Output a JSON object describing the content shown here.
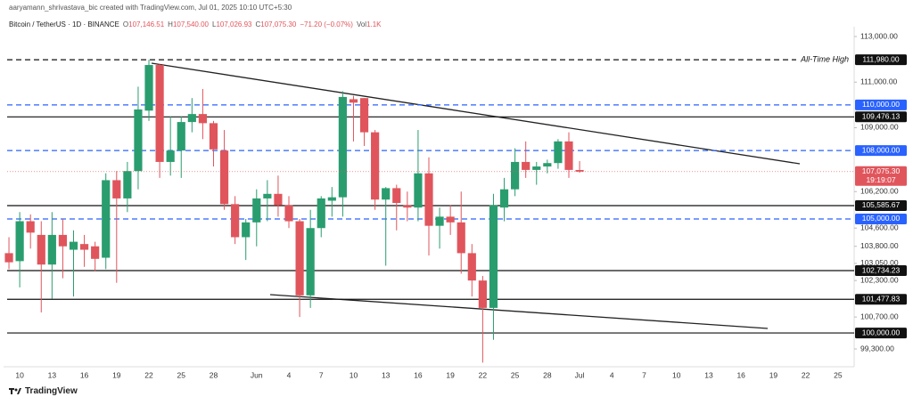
{
  "header": {
    "credit": "aaryamann_shrivastava_bic created with TradingView.com, Jul 01, 2025 10:10 UTC+5:30",
    "symbol": "Bitcoin / TetherUS · 1D · BINANCE",
    "ohlc": [
      {
        "key": "O",
        "value": "107,146.51"
      },
      {
        "key": "H",
        "value": "107,540.00"
      },
      {
        "key": "L",
        "value": "107,026.93"
      },
      {
        "key": "C",
        "value": "107,075.30"
      }
    ],
    "change": "−71.20 (−0.07%)",
    "volume_key": "Vol",
    "volume": "1.1K"
  },
  "footer": {
    "brand": "TradingView"
  },
  "chart_data": {
    "type": "candlestick",
    "up_color": "#2a9d6f",
    "down_color": "#e0555c",
    "categories": [
      null,
      "10",
      null,
      null,
      "13",
      null,
      null,
      "16",
      null,
      null,
      "19",
      null,
      null,
      "22",
      null,
      null,
      "25",
      null,
      null,
      "28",
      null,
      null,
      null,
      "Jun",
      null,
      null,
      "4",
      null,
      null,
      "7",
      null,
      null,
      "10",
      null,
      null,
      "13",
      null,
      null,
      "16",
      null,
      null,
      "19",
      null,
      null,
      "22",
      null,
      null,
      "25",
      null,
      null,
      "28",
      null,
      null,
      "Jul",
      null,
      null,
      "4",
      null,
      null,
      "7",
      null,
      null,
      "10",
      null,
      null,
      "13",
      null,
      null,
      "16",
      null,
      null,
      "19",
      null,
      null,
      "22",
      null,
      null,
      "25",
      null
    ],
    "open": [
      103500,
      103150,
      104900,
      104300,
      103000,
      104300,
      103650,
      103900,
      103800,
      103300,
      106700,
      105900,
      107100,
      109750,
      111750,
      107500,
      108000,
      109250,
      109600,
      109200,
      108000,
      105650,
      104200,
      104850,
      105900,
      106100,
      105600,
      104900,
      101650,
      104600,
      105800,
      105950,
      110250,
      110300,
      108800,
      105850,
      106350,
      105600,
      105500,
      107000,
      104700,
      105100,
      104850,
      103500,
      102300,
      101100,
      105500,
      106300,
      107500,
      107150,
      107300,
      107450,
      108400,
      107146.51,
      null,
      null,
      null,
      null,
      null,
      null,
      null,
      null,
      null,
      null,
      null,
      null,
      null,
      null,
      null,
      null,
      null,
      null,
      null,
      null,
      null,
      null,
      null,
      null,
      null
    ],
    "high": [
      104200,
      105300,
      105200,
      104900,
      105300,
      105000,
      104500,
      104300,
      104000,
      107000,
      107100,
      107500,
      110800,
      111980,
      111800,
      109500,
      109500,
      110300,
      110700,
      109300,
      108900,
      106000,
      105000,
      106300,
      106700,
      106900,
      106000,
      105000,
      105400,
      106000,
      106400,
      110600,
      110400,
      110300,
      108900,
      106400,
      106500,
      106200,
      108900,
      107700,
      105500,
      105600,
      106200,
      103900,
      102500,
      106100,
      106800,
      108100,
      108400,
      107500,
      107600,
      108500,
      108800,
      107540,
      null,
      null,
      null,
      null,
      null,
      null,
      null,
      null,
      null,
      null,
      null,
      null,
      null,
      null,
      null,
      null,
      null,
      null,
      null,
      null,
      null,
      null,
      null,
      null,
      null
    ],
    "low": [
      102800,
      102000,
      103700,
      100900,
      101500,
      102400,
      101600,
      102900,
      102700,
      102800,
      102200,
      105300,
      106300,
      109300,
      106800,
      106900,
      106800,
      108800,
      108500,
      107300,
      105400,
      103900,
      103200,
      103800,
      104900,
      105100,
      104600,
      100700,
      101100,
      104200,
      105100,
      105100,
      108400,
      108200,
      105400,
      102950,
      104500,
      104900,
      104900,
      103400,
      103700,
      104300,
      102600,
      101600,
      98700,
      99700,
      104900,
      106000,
      106800,
      106500,
      107000,
      107200,
      106800,
      107026.93,
      null,
      null,
      null,
      null,
      null,
      null,
      null,
      null,
      null,
      null,
      null,
      null,
      null,
      null,
      null,
      null,
      null,
      null,
      null,
      null,
      null,
      null,
      null,
      null,
      null
    ],
    "close": [
      103100,
      104900,
      104400,
      103000,
      104300,
      103800,
      104000,
      103650,
      103250,
      106700,
      105900,
      107100,
      109800,
      111750,
      107500,
      108000,
      109250,
      109600,
      109200,
      108050,
      105650,
      104200,
      104850,
      105900,
      106100,
      105600,
      104900,
      101650,
      104600,
      105900,
      105950,
      110350,
      110100,
      108800,
      105850,
      106350,
      105700,
      105500,
      107000,
      104700,
      105100,
      104850,
      103500,
      102300,
      101100,
      105600,
      106300,
      107500,
      107150,
      107300,
      107450,
      108400,
      107150,
      107075.3,
      null,
      null,
      null,
      null,
      null,
      null,
      null,
      null,
      null,
      null,
      null,
      null,
      null,
      null,
      null,
      null,
      null,
      null,
      null,
      null,
      null,
      null,
      null,
      null,
      null
    ],
    "ylim": [
      98520,
      113430
    ],
    "yticks": [
      {
        "value": 113000,
        "label": "113,000.00"
      },
      {
        "value": 111000,
        "label": "111,000.00"
      },
      {
        "value": 109000,
        "label": "109,000.00"
      },
      {
        "value": 106200,
        "label": "106,200.00"
      },
      {
        "value": 104600,
        "label": "104,600.00"
      },
      {
        "value": 103800,
        "label": "103,800.00"
      },
      {
        "value": 103050,
        "label": "103,050.00"
      },
      {
        "value": 102300,
        "label": "102,300.00"
      },
      {
        "value": 100700,
        "label": "100,700.00"
      },
      {
        "value": 99300,
        "label": "99,300.00"
      }
    ],
    "price_lines": [
      {
        "value": 111980,
        "label": "111,980.00",
        "color": "#111111",
        "dashed": true,
        "annotation": "All-Time High"
      },
      {
        "value": 110000,
        "label": "110,000.00",
        "color": "#2962ff",
        "dashed": true
      },
      {
        "value": 109476.13,
        "label": "109,476.13",
        "color": "#111111",
        "dashed": false
      },
      {
        "value": 108000,
        "label": "108,000.00",
        "color": "#2962ff",
        "dashed": true
      },
      {
        "value": 105585.67,
        "label": "105,585.67",
        "color": "#111111",
        "dashed": false
      },
      {
        "value": 105000,
        "label": "105,000.00",
        "color": "#2962ff",
        "dashed": true
      },
      {
        "value": 102734.23,
        "label": "102,734.23",
        "color": "#111111",
        "dashed": false
      },
      {
        "value": 101477.83,
        "label": "101,477.83",
        "color": "#111111",
        "dashed": false
      },
      {
        "value": 100000,
        "label": "100,000.00",
        "color": "#111111",
        "dashed": false
      }
    ],
    "current_price": {
      "value": 107075.3,
      "label": "107,075.30",
      "countdown": "19:19:07",
      "color": "#e0555c"
    }
  }
}
